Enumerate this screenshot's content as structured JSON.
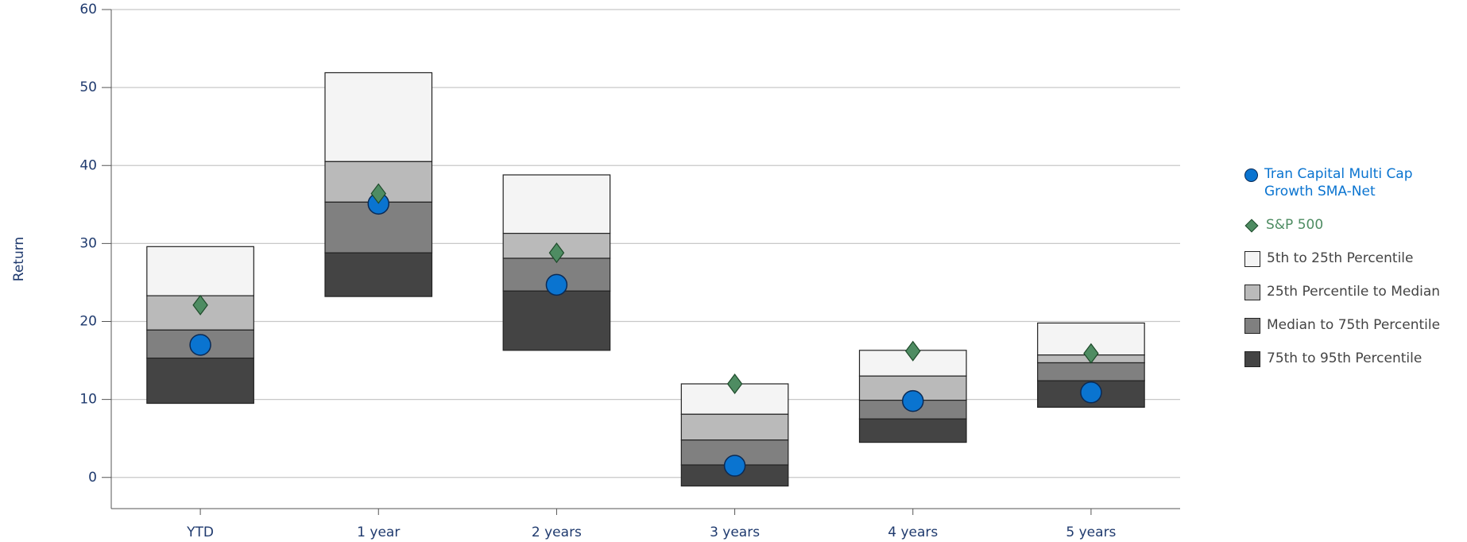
{
  "chart_data": {
    "type": "floating-range",
    "y_label": "Return",
    "categories": [
      "YTD",
      "1 year",
      "2 years",
      "3 years",
      "4 years",
      "5 years"
    ],
    "boundaries": [
      [
        29.6,
        51.9,
        38.8,
        12.0,
        16.3,
        19.8
      ],
      [
        23.3,
        40.5,
        31.3,
        8.1,
        13.0,
        15.7
      ],
      [
        18.9,
        35.3,
        28.1,
        4.8,
        9.9,
        14.7
      ],
      [
        15.3,
        28.8,
        23.9,
        1.6,
        7.5,
        12.4
      ],
      [
        9.5,
        23.2,
        16.3,
        -1.1,
        4.5,
        9.0
      ]
    ],
    "bands": [
      {
        "name": "5th to 25th Percentile",
        "color": "#f4f4f4"
      },
      {
        "name": "25th Percentile to Median",
        "color": "#bababa"
      },
      {
        "name": "Median to 75th Percentile",
        "color": "#808080"
      },
      {
        "name": "75th to 95th Percentile",
        "color": "#444444"
      }
    ],
    "series": [
      {
        "name": "Tran Capital Multi Cap Growth SMA-Net",
        "color": "#0a74d0",
        "marker": "circle",
        "values": [
          17.0,
          35.1,
          24.7,
          1.5,
          9.8,
          10.9
        ]
      },
      {
        "name": "S&P 500",
        "color": "#4e8c62",
        "marker": "diamond",
        "values": [
          22.1,
          36.4,
          28.8,
          12.0,
          16.2,
          15.9
        ]
      }
    ],
    "ylim": [
      -4,
      60
    ],
    "yticks": [
      0,
      10,
      20,
      30,
      40,
      50,
      60
    ],
    "grid": true
  }
}
